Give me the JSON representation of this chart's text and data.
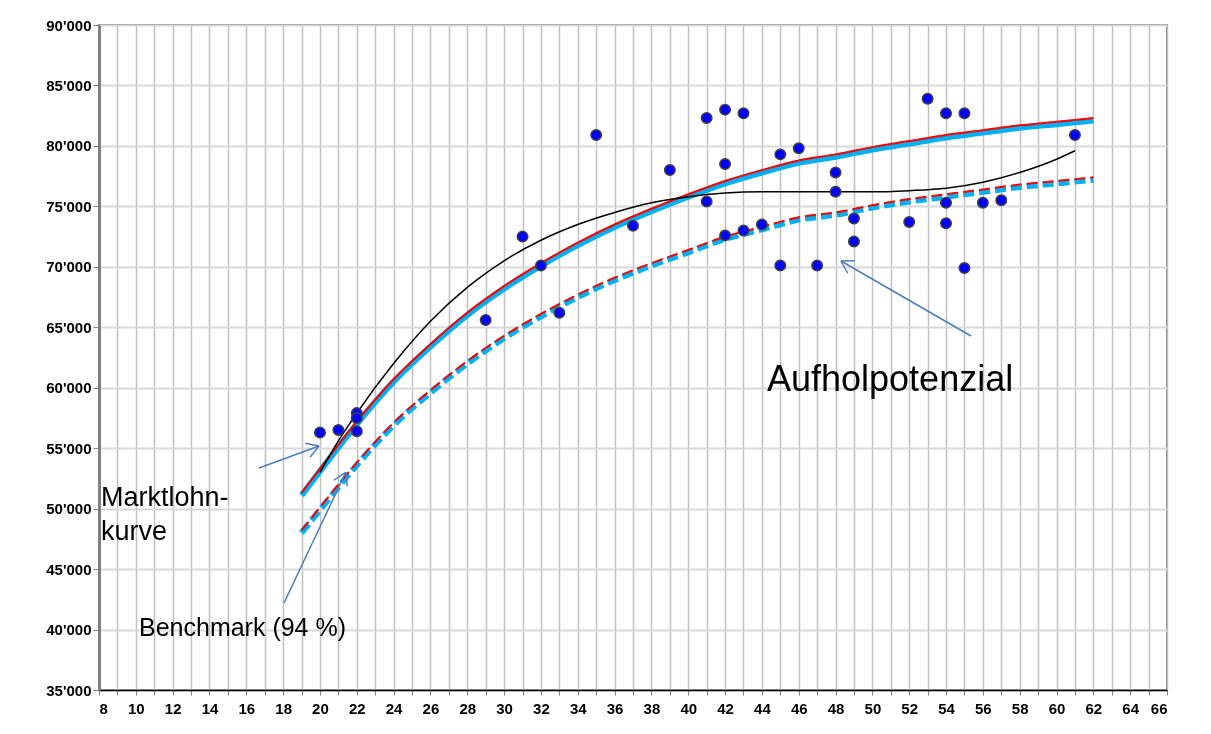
{
  "chart_data": {
    "type": "scatter",
    "xlim": [
      8,
      66
    ],
    "xticks": [
      8,
      {
        "value": 9,
        "label": null
      },
      10,
      {
        "value": 11,
        "label": null
      },
      12,
      {
        "value": 13,
        "label": null
      },
      14,
      {
        "value": 15,
        "label": null
      },
      16,
      {
        "value": 17,
        "label": null
      },
      18,
      {
        "value": 19,
        "label": null
      },
      20,
      {
        "value": 21,
        "label": null
      },
      22,
      {
        "value": 23,
        "label": null
      },
      24,
      {
        "value": 25,
        "label": null
      },
      26,
      {
        "value": 27,
        "label": null
      },
      28,
      {
        "value": 29,
        "label": null
      },
      30,
      {
        "value": 31,
        "label": null
      },
      32,
      {
        "value": 33,
        "label": null
      },
      34,
      {
        "value": 35,
        "label": null
      },
      36,
      {
        "value": 37,
        "label": null
      },
      38,
      {
        "value": 39,
        "label": null
      },
      40,
      {
        "value": 41,
        "label": null
      },
      42,
      {
        "value": 43,
        "label": null
      },
      44,
      {
        "value": 45,
        "label": null
      },
      46,
      {
        "value": 47,
        "label": null
      },
      48,
      {
        "value": 49,
        "label": null
      },
      50,
      {
        "value": 51,
        "label": null
      },
      52,
      {
        "value": 53,
        "label": null
      },
      54,
      {
        "value": 55,
        "label": null
      },
      56,
      {
        "value": 57,
        "label": null
      },
      58,
      {
        "value": 59,
        "label": null
      },
      60,
      {
        "value": 61,
        "label": null
      },
      62,
      {
        "value": 63,
        "label": null
      },
      64,
      {
        "value": 65,
        "label": null
      },
      66
    ],
    "ylim": [
      35000,
      90000
    ],
    "yticks": [
      {
        "value": 35000,
        "label": "35'000"
      },
      {
        "value": 40000,
        "label": "40'000"
      },
      {
        "value": 45000,
        "label": "45'000"
      },
      {
        "value": 50000,
        "label": "50'000"
      },
      {
        "value": 55000,
        "label": "55'000"
      },
      {
        "value": 60000,
        "label": "60'000"
      },
      {
        "value": 65000,
        "label": "65'000"
      },
      {
        "value": 70000,
        "label": "70'000"
      },
      {
        "value": 75000,
        "label": "75'000"
      },
      {
        "value": 80000,
        "label": "80'000"
      },
      {
        "value": 85000,
        "label": "85'000"
      },
      {
        "value": 90000,
        "label": "90'000"
      }
    ],
    "grid": true,
    "marker": "circle",
    "series": [
      {
        "color": "#0000ff",
        "x": [
          20,
          21,
          22,
          22,
          22,
          29,
          31,
          32,
          33,
          35,
          37,
          39,
          41,
          41,
          42,
          42,
          42,
          43,
          43,
          44,
          45,
          45,
          46,
          47,
          48,
          48,
          49,
          49,
          52,
          53,
          54,
          54,
          54,
          55,
          55,
          56,
          57,
          61
        ],
        "values": [
          56300,
          56500,
          57900,
          57500,
          56400,
          65600,
          72500,
          70100,
          66200,
          80900,
          73400,
          78000,
          82300,
          75400,
          83000,
          78500,
          72600,
          82700,
          73000,
          73500,
          79300,
          70100,
          79800,
          70100,
          77800,
          76200,
          74000,
          72100,
          73700,
          83900,
          82700,
          75300,
          73600,
          82700,
          69900,
          75300,
          75500,
          80900
        ]
      },
      {
        "type": "line",
        "color": "#00b0f0",
        "line_style": "solid",
        "marker": "none",
        "x": [
          19,
          20,
          22,
          24,
          26,
          28,
          30,
          32,
          34,
          36,
          38,
          40,
          42,
          44,
          46,
          48,
          50,
          52,
          54,
          56,
          58,
          60,
          62
        ],
        "values": [
          51100,
          53100,
          57000,
          60500,
          63400,
          66000,
          68200,
          70100,
          71800,
          73300,
          74600,
          75800,
          76900,
          77800,
          78600,
          79100,
          79700,
          80200,
          80700,
          81100,
          81500,
          81800,
          82100
        ]
      },
      {
        "type": "line",
        "color": "#ff0000",
        "line_style": "solid",
        "marker": "none",
        "x": [
          19,
          20,
          22,
          24,
          26,
          28,
          30,
          32,
          34,
          36,
          38,
          40,
          42,
          44,
          46,
          48,
          50,
          52,
          54,
          56,
          58,
          60,
          62
        ],
        "values": [
          51300,
          53300,
          57200,
          60700,
          63600,
          66200,
          68400,
          70300,
          72000,
          73500,
          74800,
          76000,
          77100,
          78000,
          78800,
          79300,
          79900,
          80400,
          80900,
          81300,
          81700,
          82000,
          82300
        ]
      },
      {
        "type": "line",
        "color": "#00b0f0",
        "line_style": "dashed",
        "marker": "none",
        "x": [
          19,
          20,
          22,
          24,
          26,
          28,
          30,
          32,
          34,
          36,
          38,
          40,
          42,
          44,
          46,
          48,
          50,
          52,
          54,
          56,
          58,
          60,
          62
        ],
        "values": [
          48000,
          49900,
          53600,
          56900,
          59600,
          62000,
          64100,
          65900,
          67500,
          68900,
          70100,
          71200,
          72300,
          73100,
          73900,
          74300,
          74900,
          75400,
          75800,
          76200,
          76600,
          76900,
          77200
        ]
      },
      {
        "type": "line",
        "color": "#ff0000",
        "line_style": "dashed",
        "marker": "none",
        "x": [
          19,
          20,
          22,
          24,
          26,
          28,
          30,
          32,
          34,
          36,
          38,
          40,
          42,
          44,
          46,
          48,
          50,
          52,
          54,
          56,
          58,
          60,
          62
        ],
        "values": [
          48200,
          50100,
          53800,
          57100,
          59800,
          62200,
          64300,
          66100,
          67700,
          69100,
          70300,
          71400,
          72500,
          73300,
          74100,
          74500,
          75100,
          75600,
          76000,
          76400,
          76800,
          77100,
          77400
        ]
      },
      {
        "type": "line",
        "color": "#000000",
        "line_style": "solid",
        "marker": "none",
        "x": [
          20,
          21,
          22,
          24,
          26,
          28,
          30,
          32,
          34,
          36,
          38,
          40,
          42,
          44,
          46,
          48,
          50,
          52,
          54,
          56,
          58,
          60,
          61
        ],
        "values": [
          53000,
          55600,
          57900,
          62000,
          65500,
          68300,
          70500,
          72200,
          73500,
          74500,
          75300,
          75800,
          76100,
          76200,
          76200,
          76200,
          76200,
          76300,
          76500,
          77000,
          77800,
          78900,
          79600
        ]
      }
    ],
    "annotations": [
      "Marktlohn-\nkurve",
      {
        "text": "Benchmark (94 %)",
        "x": 21.4,
        "y": 53000
      },
      "Aufholpotenzial"
    ]
  }
}
